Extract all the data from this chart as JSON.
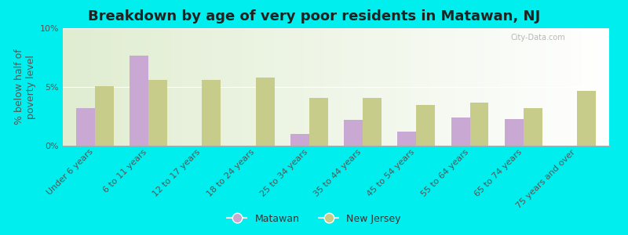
{
  "title": "Breakdown by age of very poor residents in Matawan, NJ",
  "ylabel": "% below half of\npoverty level",
  "categories": [
    "Under 6 years",
    "6 to 11 years",
    "12 to 17 years",
    "18 to 24 years",
    "25 to 34 years",
    "35 to 44 years",
    "45 to 54 years",
    "55 to 64 years",
    "65 to 74 years",
    "75 years and over"
  ],
  "matawan": [
    3.2,
    7.7,
    0.0,
    0.0,
    1.0,
    2.2,
    1.2,
    2.4,
    2.3,
    0.0
  ],
  "new_jersey": [
    5.1,
    5.6,
    5.6,
    5.8,
    4.1,
    4.1,
    3.5,
    3.7,
    3.2,
    4.7
  ],
  "matawan_color": "#c9a8d4",
  "nj_color": "#c8cc8a",
  "bg_color": "#00eeee",
  "plot_bg_color": "#e8f0d8",
  "ylim": [
    0,
    10
  ],
  "yticks": [
    0,
    5,
    10
  ],
  "ytick_labels": [
    "0%",
    "5%",
    "10%"
  ],
  "bar_width": 0.35,
  "title_fontsize": 13,
  "axis_label_fontsize": 9,
  "tick_fontsize": 8,
  "legend_labels": [
    "Matawan",
    "New Jersey"
  ],
  "watermark": "City-Data.com"
}
